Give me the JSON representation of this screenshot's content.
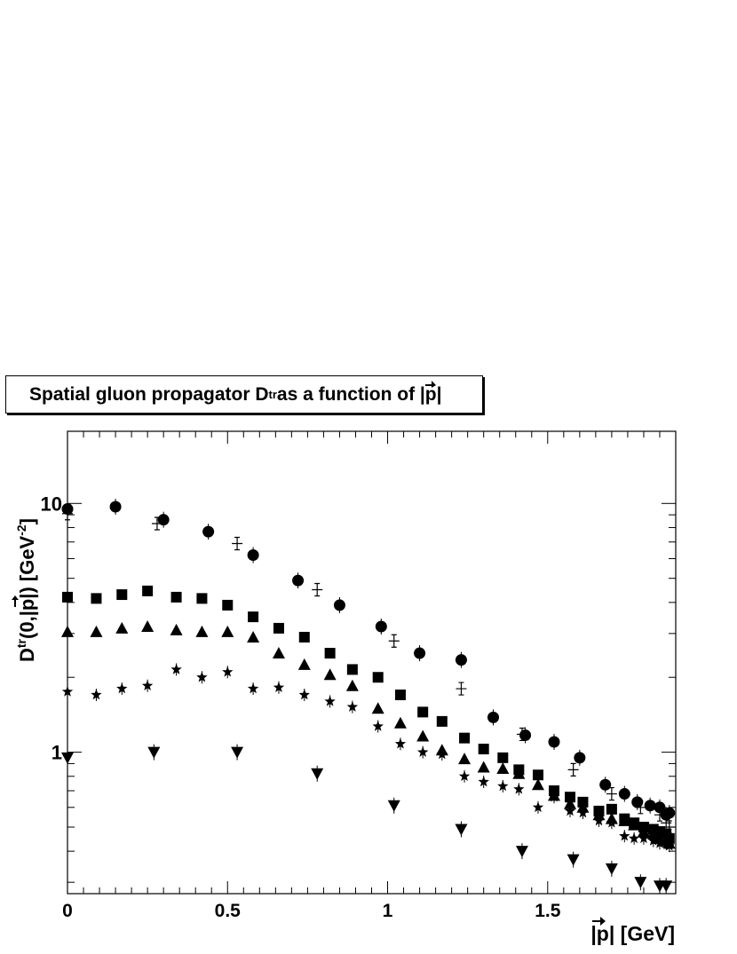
{
  "title": {
    "text": "Spatial gluon propagator D",
    "sup": "tr",
    "suffix": " as a function of |",
    "p": "p",
    "close": "|"
  },
  "chart_data": {
    "type": "scatter",
    "title": "Spatial gluon propagator Dtr as a function of |p|",
    "xlabel": "|p| [GeV]",
    "ylabel": "Dtr(0,|p|) [GeV-2]",
    "xlim": [
      0,
      1.9
    ],
    "ylim": [
      0.27,
      19.5
    ],
    "yscale": "log",
    "grid": false,
    "x_ticks": [
      "0",
      "0.5",
      "1",
      "1.5"
    ],
    "y_ticks": [
      "1",
      "10"
    ],
    "series": [
      {
        "marker": "circle",
        "x": [
          0.0,
          0.15,
          0.3,
          0.44,
          0.58,
          0.72,
          0.85,
          0.98,
          1.1,
          1.23,
          1.33,
          1.43,
          1.52,
          1.6,
          1.68,
          1.74,
          1.78,
          1.82,
          1.85,
          1.87,
          1.88
        ],
        "y": [
          9.5,
          9.7,
          8.6,
          7.7,
          6.2,
          4.9,
          3.9,
          3.2,
          2.5,
          2.35,
          1.38,
          1.17,
          1.1,
          0.95,
          0.74,
          0.68,
          0.63,
          0.61,
          0.6,
          0.56,
          0.57
        ]
      },
      {
        "marker": "cross",
        "x": [
          0.0,
          0.28,
          0.53,
          0.78,
          1.02,
          1.23,
          1.42,
          1.58,
          1.7,
          1.79,
          1.85,
          1.87,
          1.88
        ],
        "y": [
          9.1,
          8.3,
          6.9,
          4.5,
          2.8,
          1.8,
          1.18,
          0.85,
          0.68,
          0.6,
          0.56,
          0.52,
          0.5
        ]
      },
      {
        "marker": "square",
        "x": [
          0.0,
          0.09,
          0.17,
          0.25,
          0.34,
          0.42,
          0.5,
          0.58,
          0.66,
          0.74,
          0.82,
          0.89,
          0.97,
          1.04,
          1.11,
          1.17,
          1.24,
          1.3,
          1.36,
          1.41,
          1.47,
          1.52,
          1.57,
          1.61,
          1.66,
          1.7,
          1.74,
          1.77,
          1.8,
          1.83,
          1.85,
          1.87,
          1.88
        ],
        "y": [
          4.2,
          4.15,
          4.3,
          4.45,
          4.2,
          4.15,
          3.9,
          3.5,
          3.15,
          2.9,
          2.5,
          2.15,
          2.0,
          1.7,
          1.45,
          1.33,
          1.14,
          1.03,
          0.95,
          0.85,
          0.81,
          0.7,
          0.66,
          0.63,
          0.58,
          0.59,
          0.54,
          0.52,
          0.5,
          0.49,
          0.48,
          0.47,
          0.45
        ]
      },
      {
        "marker": "triangle-up",
        "x": [
          0.0,
          0.09,
          0.17,
          0.25,
          0.34,
          0.42,
          0.5,
          0.58,
          0.66,
          0.74,
          0.82,
          0.89,
          0.97,
          1.04,
          1.11,
          1.17,
          1.24,
          1.3,
          1.36,
          1.41,
          1.47,
          1.52,
          1.57,
          1.61,
          1.66,
          1.7,
          1.74,
          1.77,
          1.8,
          1.83,
          1.85,
          1.87,
          1.88
        ],
        "y": [
          3.05,
          3.05,
          3.15,
          3.2,
          3.1,
          3.05,
          3.05,
          2.9,
          2.5,
          2.25,
          2.05,
          1.85,
          1.5,
          1.31,
          1.16,
          1.02,
          0.94,
          0.87,
          0.86,
          0.82,
          0.74,
          0.67,
          0.62,
          0.6,
          0.56,
          0.54,
          0.53,
          0.51,
          0.48,
          0.47,
          0.45,
          0.44,
          0.43
        ]
      },
      {
        "marker": "star",
        "x": [
          0.0,
          0.09,
          0.17,
          0.25,
          0.34,
          0.42,
          0.5,
          0.58,
          0.66,
          0.74,
          0.82,
          0.89,
          0.97,
          1.04,
          1.11,
          1.17,
          1.24,
          1.3,
          1.36,
          1.41,
          1.47,
          1.52,
          1.57,
          1.61,
          1.66,
          1.7,
          1.74,
          1.77,
          1.8,
          1.83,
          1.85,
          1.87,
          1.88
        ],
        "y": [
          1.75,
          1.7,
          1.8,
          1.85,
          2.15,
          2.0,
          2.1,
          1.8,
          1.82,
          1.7,
          1.6,
          1.52,
          1.27,
          1.08,
          1.0,
          0.98,
          0.8,
          0.76,
          0.73,
          0.71,
          0.6,
          0.66,
          0.58,
          0.57,
          0.53,
          0.52,
          0.46,
          0.45,
          0.45,
          0.44,
          0.43,
          0.43,
          0.42
        ]
      },
      {
        "marker": "triangle-down",
        "x": [
          0.0,
          0.27,
          0.53,
          0.78,
          1.02,
          1.23,
          1.42,
          1.58,
          1.7,
          1.79,
          1.85,
          1.87
        ],
        "y": [
          0.95,
          1.0,
          1.0,
          0.82,
          0.61,
          0.49,
          0.4,
          0.37,
          0.34,
          0.3,
          0.29,
          0.29
        ]
      }
    ]
  }
}
